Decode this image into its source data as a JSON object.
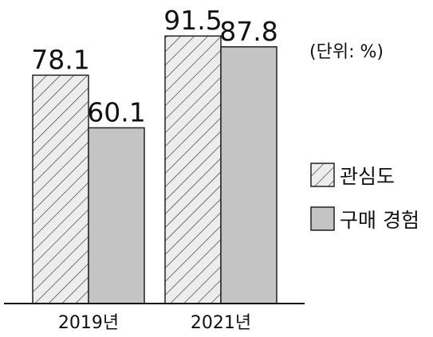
{
  "chart_data": {
    "type": "bar",
    "categories": [
      "2019년",
      "2021년"
    ],
    "series": [
      {
        "name": "관심도",
        "values": [
          78.1,
          91.5
        ],
        "pattern": "hatch",
        "color": "#d9d9d9"
      },
      {
        "name": "구매 경험",
        "values": [
          60.1,
          87.8
        ],
        "pattern": "solid",
        "color": "#c4c4c4"
      }
    ],
    "data_labels": [
      [
        "78.1",
        "91.5"
      ],
      [
        "60.1",
        "87.8"
      ]
    ],
    "unit_note": "(단위: %)",
    "ylim": [
      0,
      100
    ],
    "grid": false,
    "legend_position": "right"
  }
}
